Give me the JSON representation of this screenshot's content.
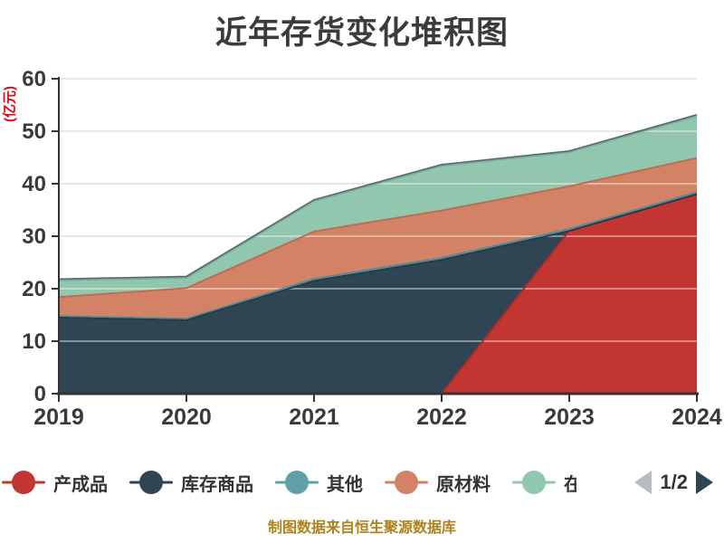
{
  "title": "近年存货变化堆积图",
  "y_axis_name": "(亿元)",
  "footer": "制图数据来自恒生聚源数据库",
  "legend": {
    "items": [
      {
        "label": "产成品",
        "color": "#c23531",
        "clipped": false
      },
      {
        "label": "库存商品",
        "color": "#2f4554",
        "clipped": false
      },
      {
        "label": "其他",
        "color": "#61a0a8",
        "clipped": false
      },
      {
        "label": "原材料",
        "color": "#d48265",
        "clipped": false
      },
      {
        "label": "在",
        "color": "#91c7ae",
        "clipped": true
      }
    ],
    "pager": {
      "prev_icon": "left-triangle-icon",
      "next_icon": "right-triangle-icon",
      "label": "1/2",
      "prev_color": "#b9bcbe",
      "next_color": "#2f4554"
    }
  },
  "chart_data": {
    "type": "area",
    "stacked": true,
    "title": "近年存货变化堆积图",
    "categories": [
      "2019",
      "2020",
      "2021",
      "2022",
      "2023",
      "2024"
    ],
    "series": [
      {
        "name": "产成品",
        "color": "#c23531",
        "values": [
          0,
          0,
          0,
          0,
          31,
          38
        ]
      },
      {
        "name": "库存商品",
        "color": "#2f4554",
        "values": [
          14.5,
          14,
          21.5,
          25.5,
          0,
          0
        ]
      },
      {
        "name": "其他",
        "color": "#61a0a8",
        "values": [
          0.3,
          0.3,
          0.4,
          0.4,
          0.4,
          0.4
        ]
      },
      {
        "name": "原材料",
        "color": "#d48265",
        "values": [
          3.6,
          5.8,
          9,
          9,
          8.1,
          6.5
        ]
      },
      {
        "name": "在",
        "color": "#91c7ae",
        "values": [
          3.2,
          2,
          5.8,
          8.5,
          6.5,
          8
        ]
      }
    ],
    "xlabel": "",
    "ylabel": "(亿元)",
    "ylim": [
      0,
      60
    ],
    "ytick_step": 10,
    "yticks": [
      0,
      10,
      20,
      30,
      40,
      50,
      60
    ],
    "grid": true,
    "legend_position": "bottom",
    "legend_page": "1/2"
  }
}
